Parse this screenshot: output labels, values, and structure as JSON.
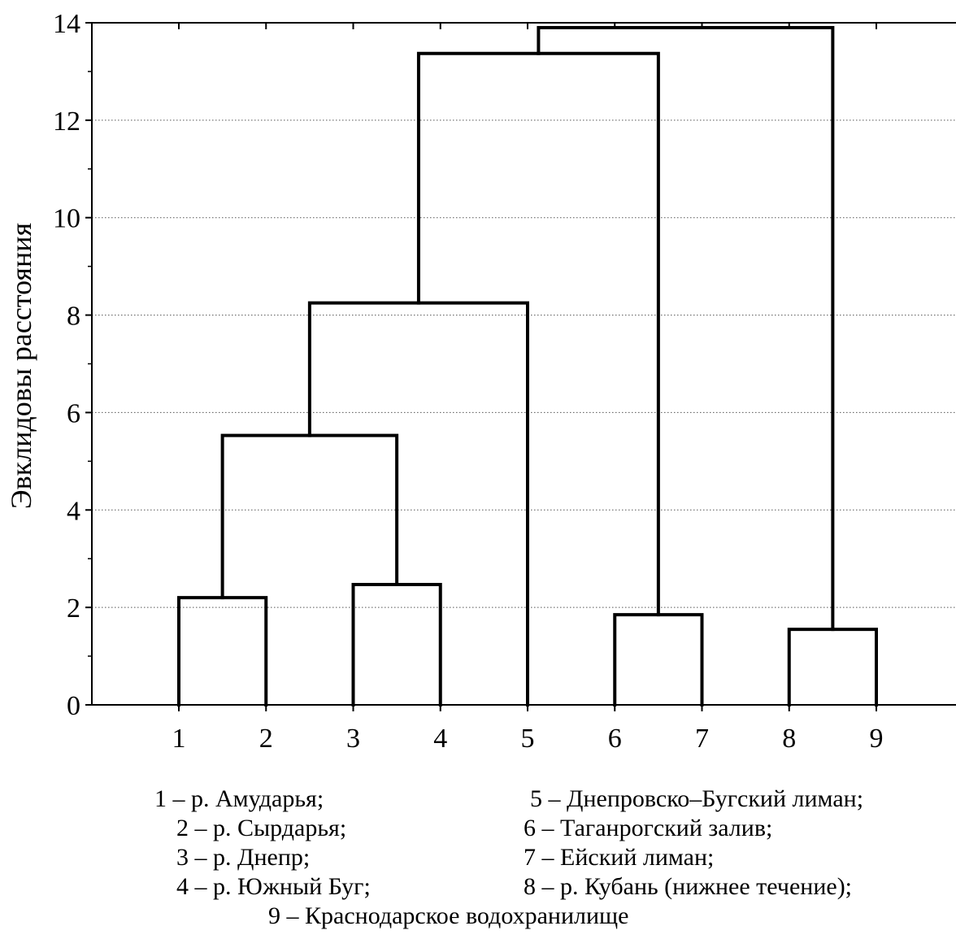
{
  "chart_data": {
    "type": "dendrogram",
    "ylabel": "Эвклидовы расстояния",
    "ylim": [
      0,
      14
    ],
    "yticks": [
      0,
      2,
      4,
      6,
      8,
      10,
      12,
      14
    ],
    "grid": "horizontal-dotted",
    "leaves": [
      "1",
      "2",
      "3",
      "4",
      "5",
      "6",
      "7",
      "8",
      "9"
    ],
    "merges": [
      {
        "left": "1",
        "right": "2",
        "height": 2.2
      },
      {
        "left": "3",
        "right": "4",
        "height": 2.47
      },
      {
        "left": "6",
        "right": "7",
        "height": 1.85
      },
      {
        "left": "8",
        "right": "9",
        "height": 1.55
      },
      {
        "left": "(1,2)",
        "right": "(3,4)",
        "height": 5.53
      },
      {
        "left": "(1,2,3,4)",
        "right": "5",
        "height": 8.25
      },
      {
        "left": "(1,2,3,4,5)",
        "right": "(6,7)",
        "height": 13.37
      },
      {
        "left": "(1,2,3,4,5,6,7)",
        "right": "(8,9)",
        "height": 13.9
      }
    ]
  },
  "legend": {
    "items": [
      "1 – р. Амударья;",
      "2 – р. Сырдарья;",
      "3 – р. Днепр;",
      "4 – р. Южный Буг;",
      "5 – Днепровско–Бугский лиман;",
      "6 – Таганрогский залив;",
      "7 – Ейский лиман;",
      "8 – р. Кубань (нижнее течение);",
      "9 – Краснодарское водохранилище"
    ]
  }
}
